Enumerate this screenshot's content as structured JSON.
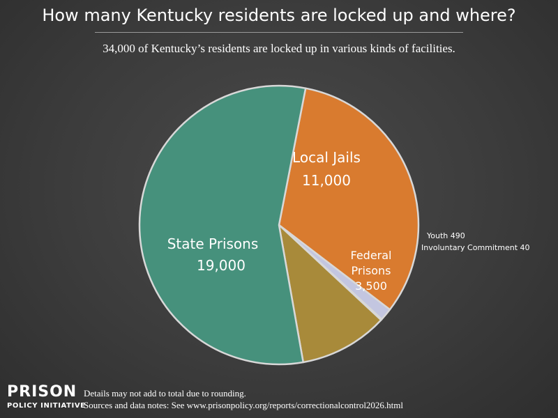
{
  "title": "How many Kentucky residents are locked up and where?",
  "subtitle": "34,000 of Kentucky’s residents are locked up in various kinds of facilities.",
  "chart_data": {
    "type": "pie",
    "slices": [
      {
        "label": "Local Jails",
        "display": "11,000",
        "value": 11000,
        "color": "#d97b2f"
      },
      {
        "label": "Youth",
        "display": "490",
        "value": 490,
        "color": "#c3c6e0"
      },
      {
        "label": "Involuntary Commitment",
        "display": "40",
        "value": 40,
        "color": "#8f8fd6"
      },
      {
        "label": "Federal Prisons",
        "display": "3,500",
        "value": 3500,
        "color": "#a88a3a"
      },
      {
        "label": "State Prisons",
        "display": "19,000",
        "value": 19000,
        "color": "#46917c"
      }
    ],
    "slice_border_color": "#d8d8d8",
    "start_angle_deg": -79
  },
  "labels": {
    "local_jails": {
      "line1": "Local Jails",
      "line2": "11,000"
    },
    "state_prisons": {
      "line1": "State Prisons",
      "line2": "19,000"
    },
    "federal_prisons": {
      "line1": "Federal",
      "line2": "Prisons",
      "line3": "3,500"
    },
    "youth": "Youth 490",
    "involuntary_commitment": "Involuntary Commitment 40"
  },
  "footer": {
    "logo_line1": "PRISON",
    "logo_line2": "POLICY INITIATIVE",
    "note1": "Details may not add to total due to rounding.",
    "note2": "Sources and data notes: See www.prisonpolicy.org/reports/correctionalcontrol2026.html"
  }
}
